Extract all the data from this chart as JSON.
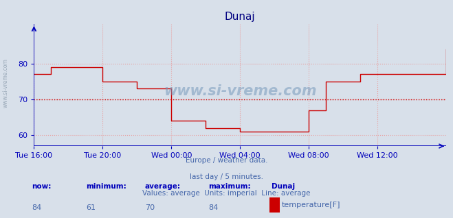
{
  "title": "Dunaj",
  "background_color": "#d8e0ea",
  "plot_bg_color": "#d8e0ea",
  "line_color": "#cc0000",
  "avg_line_color": "#cc0000",
  "avg_value": 70,
  "grid_color": "#e8a0a0",
  "axis_color": "#0000bb",
  "title_color": "#000080",
  "label_color": "#4466aa",
  "watermark_color": "#7799bb",
  "side_watermark_color": "#8899aa",
  "now": 84,
  "minimum": 61,
  "average": 70,
  "maximum": 84,
  "station": "Dunaj",
  "var_name": "temperature[F]",
  "legend_color": "#cc0000",
  "ylim_min": 57,
  "ylim_max": 91,
  "yticks": [
    60,
    70,
    80
  ],
  "x_tick_labels": [
    "Tue 16:00",
    "Tue 20:00",
    "Wed 00:00",
    "Wed 04:00",
    "Wed 08:00",
    "Wed 12:00"
  ],
  "x_tick_positions": [
    0,
    48,
    96,
    144,
    192,
    240
  ],
  "total_points": 289,
  "time_series": [
    77,
    77,
    77,
    77,
    77,
    77,
    77,
    77,
    77,
    77,
    77,
    77,
    79,
    79,
    79,
    79,
    79,
    79,
    79,
    79,
    79,
    79,
    79,
    79,
    79,
    79,
    79,
    79,
    79,
    79,
    79,
    79,
    79,
    79,
    79,
    79,
    79,
    79,
    79,
    79,
    79,
    79,
    79,
    79,
    79,
    79,
    79,
    79,
    75,
    75,
    75,
    75,
    75,
    75,
    75,
    75,
    75,
    75,
    75,
    75,
    75,
    75,
    75,
    75,
    75,
    75,
    75,
    75,
    75,
    75,
    75,
    75,
    73,
    73,
    73,
    73,
    73,
    73,
    73,
    73,
    73,
    73,
    73,
    73,
    73,
    73,
    73,
    73,
    73,
    73,
    73,
    73,
    73,
    73,
    73,
    73,
    64,
    64,
    64,
    64,
    64,
    64,
    64,
    64,
    64,
    64,
    64,
    64,
    64,
    64,
    64,
    64,
    64,
    64,
    64,
    64,
    64,
    64,
    64,
    64,
    62,
    62,
    62,
    62,
    62,
    62,
    62,
    62,
    62,
    62,
    62,
    62,
    62,
    62,
    62,
    62,
    62,
    62,
    62,
    62,
    62,
    62,
    62,
    62,
    61,
    61,
    61,
    61,
    61,
    61,
    61,
    61,
    61,
    61,
    61,
    61,
    61,
    61,
    61,
    61,
    61,
    61,
    61,
    61,
    61,
    61,
    61,
    61,
    61,
    61,
    61,
    61,
    61,
    61,
    61,
    61,
    61,
    61,
    61,
    61,
    61,
    61,
    61,
    61,
    61,
    61,
    61,
    61,
    61,
    61,
    61,
    61,
    67,
    67,
    67,
    67,
    67,
    67,
    67,
    67,
    67,
    67,
    67,
    67,
    75,
    75,
    75,
    75,
    75,
    75,
    75,
    75,
    75,
    75,
    75,
    75,
    75,
    75,
    75,
    75,
    75,
    75,
    75,
    75,
    75,
    75,
    75,
    75,
    77,
    77,
    77,
    77,
    77,
    77,
    77,
    77,
    77,
    77,
    77,
    77,
    77,
    77,
    77,
    77,
    77,
    77,
    77,
    77,
    77,
    77,
    77,
    77,
    77,
    77,
    77,
    77,
    77,
    77,
    77,
    77,
    77,
    77,
    77,
    77,
    77,
    77,
    77,
    77,
    77,
    77,
    77,
    77,
    77,
    77,
    77,
    77,
    77,
    77,
    77,
    77,
    77,
    77,
    77,
    77,
    77,
    77,
    77,
    77,
    84
  ],
  "footer_lines": [
    "Europe / weather data.",
    "last day / 5 minutes.",
    "Values: average  Units: imperial  Line: average"
  ],
  "stats_labels": [
    "now:",
    "minimum:",
    "average:",
    "maximum:",
    "Dunaj"
  ],
  "stats_values": [
    "84",
    "61",
    "70",
    "84",
    ""
  ],
  "figsize": [
    6.59,
    3.18
  ],
  "dpi": 100
}
